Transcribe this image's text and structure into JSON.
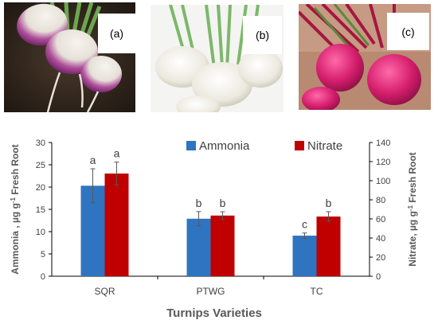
{
  "panels": [
    {
      "label": "(a)",
      "icon": "purple-top-turnip-photo"
    },
    {
      "label": "(b)",
      "icon": "white-turnip-photo"
    },
    {
      "label": "(c)",
      "icon": "red-turnip-photo"
    }
  ],
  "colors": {
    "ammonia": "#2f74c0",
    "nitrate": "#c00000",
    "error_bar": "#595959",
    "axis": "#000000"
  },
  "chart_data": {
    "type": "bar",
    "categories": [
      "SQR",
      "PTWG",
      "TC"
    ],
    "xlabel": "Turnips Varieties",
    "legend_position": "top-right",
    "y_left": {
      "label_main": "Ammonia ,  µg g",
      "label_sup": "-1",
      "label_tail": " Fresh Root",
      "lim": [
        0,
        30
      ],
      "ticks": [
        "0",
        "5",
        "10",
        "15",
        "20",
        "25",
        "30"
      ]
    },
    "y_right": {
      "label_main": "Nitrate, µg g",
      "label_sup": "-1",
      "label_tail": " Fresh Root",
      "lim": [
        0,
        140
      ],
      "ticks": [
        "0",
        "20",
        "40",
        "60",
        "80",
        "100",
        "120",
        "140"
      ]
    },
    "series": [
      {
        "name": "Ammonia",
        "axis": "left",
        "values": [
          20.3,
          12.9,
          9.1
        ],
        "errors": [
          3.8,
          1.6,
          0.6
        ],
        "letters": [
          "a",
          "b",
          "c"
        ]
      },
      {
        "name": "Nitrate",
        "axis": "right",
        "values": [
          107.5,
          63.5,
          62.5
        ],
        "errors": [
          12,
          4,
          5
        ],
        "letters": [
          "a",
          "b",
          "b"
        ]
      }
    ]
  }
}
